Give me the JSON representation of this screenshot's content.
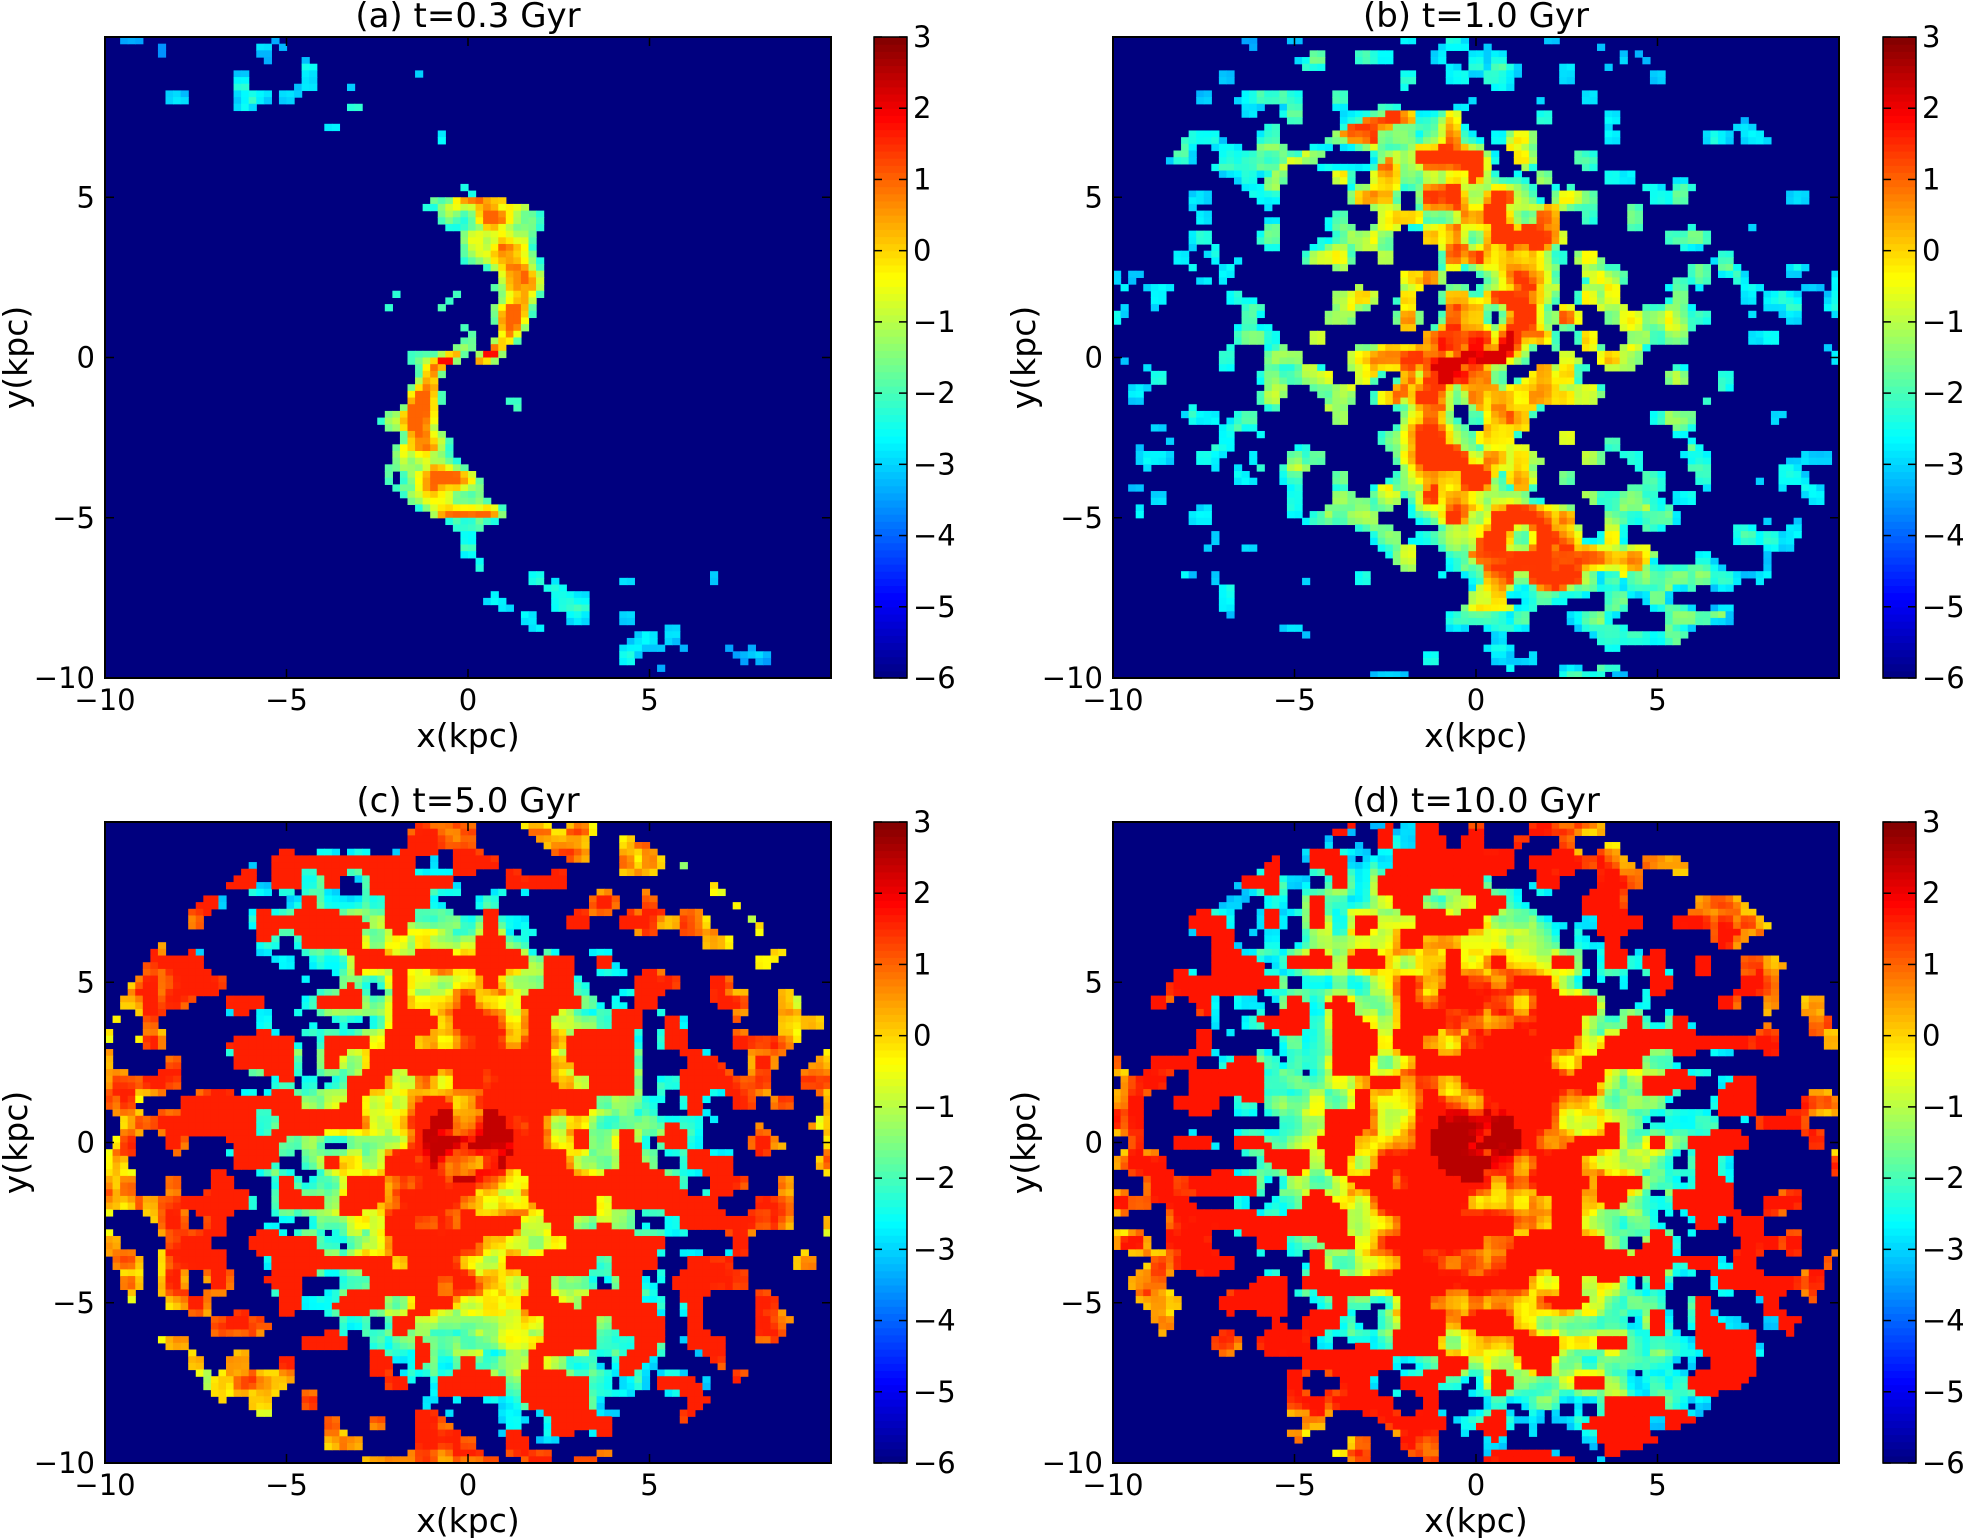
{
  "chart_data": [
    {
      "type": "heatmap",
      "title": "(a) t=0.3 Gyr",
      "xlabel": "x(kpc)",
      "ylabel": "y(kpc)",
      "xlim": [
        -10,
        10
      ],
      "ylim": [
        -10,
        10
      ],
      "xticks": [
        -10,
        -5,
        0,
        5
      ],
      "yticks": [
        -10,
        -5,
        0,
        5
      ],
      "colorbar": {
        "min": -6,
        "max": 3,
        "ticks": [
          3,
          2,
          1,
          0,
          -1,
          -2,
          -3,
          -4,
          -5,
          -6
        ],
        "colormap": "jet"
      },
      "stage": "early",
      "description_of_values": "sparse orange/yellow cells (~0 to 1) concentrated in central spiral region within r<5 kpc; background at -6"
    },
    {
      "type": "heatmap",
      "title": "(b) t=1.0 Gyr",
      "xlabel": "x(kpc)",
      "ylabel": "y(kpc)",
      "xlim": [
        -10,
        10
      ],
      "ylim": [
        -10,
        10
      ],
      "xticks": [
        -10,
        -5,
        0,
        5
      ],
      "yticks": [
        -10,
        -5,
        0,
        5
      ],
      "colorbar": {
        "min": -6,
        "max": 3,
        "ticks": [
          3,
          2,
          1,
          0,
          -1,
          -2,
          -3,
          -4,
          -5,
          -6
        ],
        "colormap": "jet"
      },
      "stage": "growing",
      "description_of_values": "spiral arms of orange/red (~1 to 2) in center, blue/cyan patches (~-4 to -3) in outer disc; background at -6"
    },
    {
      "type": "heatmap",
      "title": "(c) t=5.0 Gyr",
      "xlabel": "x(kpc)",
      "ylabel": "y(kpc)",
      "xlim": [
        -10,
        10
      ],
      "ylim": [
        -10,
        10
      ],
      "xticks": [
        -10,
        -5,
        0,
        5
      ],
      "yticks": [
        -10,
        -5,
        0,
        5
      ],
      "colorbar": {
        "min": -6,
        "max": 3,
        "ticks": [
          3,
          2,
          1,
          0,
          -1,
          -2,
          -3,
          -4,
          -5,
          -6
        ],
        "colormap": "jet"
      },
      "stage": "filled",
      "description_of_values": "disc filled with orange/yellow (~0 to 1.5), red center (~2), cyan/blue holes; background at -6"
    },
    {
      "type": "heatmap",
      "title": "(d) t=10.0 Gyr",
      "xlabel": "x(kpc)",
      "ylabel": "y(kpc)",
      "xlim": [
        -10,
        10
      ],
      "ylim": [
        -10,
        10
      ],
      "xticks": [
        -10,
        -5,
        0,
        5
      ],
      "yticks": [
        -10,
        -5,
        0,
        5
      ],
      "colorbar": {
        "min": -6,
        "max": 3,
        "ticks": [
          3,
          2,
          1,
          0,
          -1,
          -2,
          -3,
          -4,
          -5,
          -6
        ],
        "colormap": "jet"
      },
      "stage": "mature",
      "description_of_values": "smooth spiral disc of orange/yellow (~0 to 1.5) with red center (~2), blue gaps; background at -6"
    }
  ],
  "colors": {
    "background_low": "#00007f",
    "jet_stops": [
      "#00007f",
      "#0000ff",
      "#007fff",
      "#00ffff",
      "#7fff7f",
      "#ffff00",
      "#ff7f00",
      "#ff0000",
      "#7f0000"
    ]
  }
}
